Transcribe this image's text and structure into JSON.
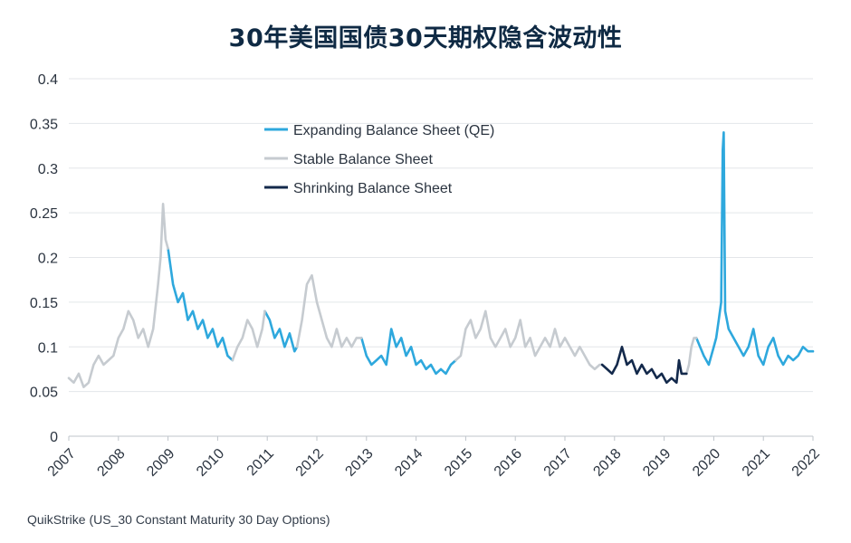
{
  "title": "30年美国国债30天期权隐含波动性",
  "source": "QuikStrike (US_30 Constant Maturity 30 Day Options)",
  "chart_data": {
    "type": "line",
    "title": "30年美国国债30天期权隐含波动性",
    "xlabel": "",
    "ylabel": "",
    "xlim": [
      2007,
      2022
    ],
    "ylim": [
      0,
      0.4
    ],
    "y_ticks": [
      "0",
      "0.05",
      "0.1",
      "0.15",
      "0.2",
      "0.25",
      "0.3",
      "0.35",
      "0.4"
    ],
    "x_ticks": [
      "2007",
      "2008",
      "2009",
      "2010",
      "2011",
      "2012",
      "2013",
      "2014",
      "2015",
      "2016",
      "2017",
      "2018",
      "2019",
      "2020",
      "2021",
      "2022"
    ],
    "grid": "horizontal",
    "legend_position": "upper-center",
    "series": [
      {
        "name": "Expanding Balance Sheet (QE)",
        "color": "#2ea8dd",
        "segments": [
          [
            [
              2009.0,
              0.21
            ],
            [
              2009.1,
              0.17
            ],
            [
              2009.2,
              0.15
            ],
            [
              2009.3,
              0.16
            ],
            [
              2009.4,
              0.13
            ],
            [
              2009.5,
              0.14
            ],
            [
              2009.6,
              0.12
            ],
            [
              2009.7,
              0.13
            ],
            [
              2009.8,
              0.11
            ],
            [
              2009.9,
              0.12
            ],
            [
              2010.0,
              0.1
            ],
            [
              2010.1,
              0.11
            ],
            [
              2010.2,
              0.09
            ],
            [
              2010.3,
              0.085
            ]
          ],
          [
            [
              2010.95,
              0.14
            ],
            [
              2011.05,
              0.13
            ],
            [
              2011.15,
              0.11
            ],
            [
              2011.25,
              0.12
            ],
            [
              2011.35,
              0.1
            ],
            [
              2011.45,
              0.115
            ],
            [
              2011.55,
              0.095
            ],
            [
              2011.6,
              0.1
            ]
          ],
          [
            [
              2012.9,
              0.11
            ],
            [
              2013.0,
              0.09
            ],
            [
              2013.1,
              0.08
            ],
            [
              2013.2,
              0.085
            ],
            [
              2013.3,
              0.09
            ],
            [
              2013.4,
              0.08
            ],
            [
              2013.5,
              0.12
            ],
            [
              2013.6,
              0.1
            ],
            [
              2013.7,
              0.11
            ],
            [
              2013.8,
              0.09
            ],
            [
              2013.9,
              0.1
            ],
            [
              2014.0,
              0.08
            ],
            [
              2014.1,
              0.085
            ],
            [
              2014.2,
              0.075
            ],
            [
              2014.3,
              0.08
            ],
            [
              2014.4,
              0.07
            ],
            [
              2014.5,
              0.075
            ],
            [
              2014.6,
              0.07
            ],
            [
              2014.7,
              0.08
            ],
            [
              2014.8,
              0.085
            ]
          ],
          [
            [
              2019.65,
              0.11
            ],
            [
              2019.8,
              0.09
            ],
            [
              2019.9,
              0.08
            ],
            [
              2020.0,
              0.1
            ],
            [
              2020.05,
              0.11
            ],
            [
              2020.1,
              0.13
            ],
            [
              2020.15,
              0.15
            ],
            [
              2020.18,
              0.32
            ],
            [
              2020.2,
              0.34
            ],
            [
              2020.23,
              0.14
            ],
            [
              2020.3,
              0.12
            ],
            [
              2020.4,
              0.11
            ],
            [
              2020.5,
              0.1
            ],
            [
              2020.6,
              0.09
            ],
            [
              2020.7,
              0.1
            ],
            [
              2020.8,
              0.12
            ],
            [
              2020.9,
              0.09
            ],
            [
              2021.0,
              0.08
            ],
            [
              2021.1,
              0.1
            ],
            [
              2021.2,
              0.11
            ],
            [
              2021.3,
              0.09
            ],
            [
              2021.4,
              0.08
            ],
            [
              2021.5,
              0.09
            ],
            [
              2021.6,
              0.085
            ],
            [
              2021.7,
              0.09
            ],
            [
              2021.8,
              0.1
            ],
            [
              2021.9,
              0.095
            ],
            [
              2022.0,
              0.095
            ]
          ]
        ]
      },
      {
        "name": "Stable Balance Sheet",
        "color": "#c6cbd0",
        "segments": [
          [
            [
              2007.0,
              0.065
            ],
            [
              2007.1,
              0.06
            ],
            [
              2007.2,
              0.07
            ],
            [
              2007.3,
              0.055
            ],
            [
              2007.4,
              0.06
            ],
            [
              2007.5,
              0.08
            ],
            [
              2007.6,
              0.09
            ],
            [
              2007.7,
              0.08
            ],
            [
              2007.8,
              0.085
            ],
            [
              2007.9,
              0.09
            ],
            [
              2008.0,
              0.11
            ],
            [
              2008.1,
              0.12
            ],
            [
              2008.2,
              0.14
            ],
            [
              2008.3,
              0.13
            ],
            [
              2008.4,
              0.11
            ],
            [
              2008.5,
              0.12
            ],
            [
              2008.6,
              0.1
            ],
            [
              2008.7,
              0.12
            ],
            [
              2008.8,
              0.17
            ],
            [
              2008.85,
              0.2
            ],
            [
              2008.9,
              0.26
            ],
            [
              2008.95,
              0.22
            ],
            [
              2009.0,
              0.21
            ]
          ],
          [
            [
              2010.3,
              0.085
            ],
            [
              2010.4,
              0.1
            ],
            [
              2010.5,
              0.11
            ],
            [
              2010.6,
              0.13
            ],
            [
              2010.7,
              0.12
            ],
            [
              2010.8,
              0.1
            ],
            [
              2010.9,
              0.12
            ],
            [
              2010.95,
              0.14
            ]
          ],
          [
            [
              2011.6,
              0.1
            ],
            [
              2011.7,
              0.13
            ],
            [
              2011.8,
              0.17
            ],
            [
              2011.9,
              0.18
            ],
            [
              2012.0,
              0.15
            ],
            [
              2012.1,
              0.13
            ],
            [
              2012.2,
              0.11
            ],
            [
              2012.3,
              0.1
            ],
            [
              2012.4,
              0.12
            ],
            [
              2012.5,
              0.1
            ],
            [
              2012.6,
              0.11
            ],
            [
              2012.7,
              0.1
            ],
            [
              2012.8,
              0.11
            ],
            [
              2012.9,
              0.11
            ]
          ],
          [
            [
              2014.8,
              0.085
            ],
            [
              2014.9,
              0.09
            ],
            [
              2015.0,
              0.12
            ],
            [
              2015.1,
              0.13
            ],
            [
              2015.2,
              0.11
            ],
            [
              2015.3,
              0.12
            ],
            [
              2015.4,
              0.14
            ],
            [
              2015.5,
              0.11
            ],
            [
              2015.6,
              0.1
            ],
            [
              2015.7,
              0.11
            ],
            [
              2015.8,
              0.12
            ],
            [
              2015.9,
              0.1
            ],
            [
              2016.0,
              0.11
            ],
            [
              2016.1,
              0.13
            ],
            [
              2016.2,
              0.1
            ],
            [
              2016.3,
              0.11
            ],
            [
              2016.4,
              0.09
            ],
            [
              2016.5,
              0.1
            ],
            [
              2016.6,
              0.11
            ],
            [
              2016.7,
              0.1
            ],
            [
              2016.8,
              0.12
            ],
            [
              2016.9,
              0.1
            ],
            [
              2017.0,
              0.11
            ],
            [
              2017.1,
              0.1
            ],
            [
              2017.2,
              0.09
            ],
            [
              2017.3,
              0.1
            ],
            [
              2017.4,
              0.09
            ],
            [
              2017.5,
              0.08
            ],
            [
              2017.6,
              0.075
            ],
            [
              2017.7,
              0.08
            ],
            [
              2017.75,
              0.08
            ]
          ],
          [
            [
              2019.45,
              0.07
            ],
            [
              2019.5,
              0.08
            ],
            [
              2019.55,
              0.1
            ],
            [
              2019.6,
              0.11
            ],
            [
              2019.65,
              0.11
            ]
          ]
        ]
      },
      {
        "name": "Shrinking Balance Sheet",
        "color": "#13294b",
        "segments": [
          [
            [
              2017.75,
              0.08
            ],
            [
              2017.85,
              0.075
            ],
            [
              2017.95,
              0.07
            ],
            [
              2018.05,
              0.08
            ],
            [
              2018.15,
              0.1
            ],
            [
              2018.25,
              0.08
            ],
            [
              2018.35,
              0.085
            ],
            [
              2018.45,
              0.07
            ],
            [
              2018.55,
              0.08
            ],
            [
              2018.65,
              0.07
            ],
            [
              2018.75,
              0.075
            ],
            [
              2018.85,
              0.065
            ],
            [
              2018.95,
              0.07
            ],
            [
              2019.05,
              0.06
            ],
            [
              2019.15,
              0.065
            ],
            [
              2019.25,
              0.06
            ],
            [
              2019.3,
              0.085
            ],
            [
              2019.35,
              0.07
            ],
            [
              2019.45,
              0.07
            ]
          ]
        ]
      }
    ]
  }
}
